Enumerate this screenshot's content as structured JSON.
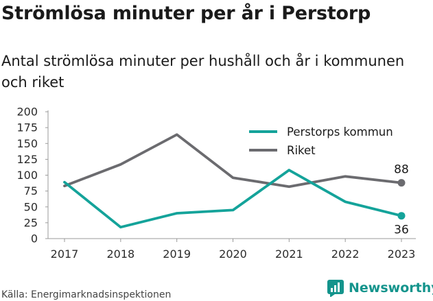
{
  "title": "Strömlösa minuter per år i Perstorp",
  "subtitle": "Antal strömlösa minuter per hushåll och år i kommunen och riket",
  "source": "Källa: Energimarknadsinspektionen",
  "brand": {
    "name": "Newsworthy",
    "icon": "newsworthy-logo-icon",
    "color": "#14948c"
  },
  "chart_data": {
    "type": "line",
    "x": [
      "2017",
      "2018",
      "2019",
      "2020",
      "2021",
      "2022",
      "2023"
    ],
    "series": [
      {
        "name": "Perstorps kommun",
        "color": "#14a39a",
        "values": [
          89,
          18,
          40,
          45,
          108,
          58,
          36
        ]
      },
      {
        "name": "Riket",
        "color": "#6b6b6f",
        "values": [
          83,
          117,
          164,
          96,
          82,
          98,
          88
        ]
      }
    ],
    "yticks": [
      0,
      25,
      50,
      75,
      100,
      125,
      150,
      175,
      200
    ],
    "ylim": [
      0,
      200
    ],
    "end_labels": [
      "36",
      "88"
    ],
    "legend_position": "top-right",
    "grid": false
  }
}
